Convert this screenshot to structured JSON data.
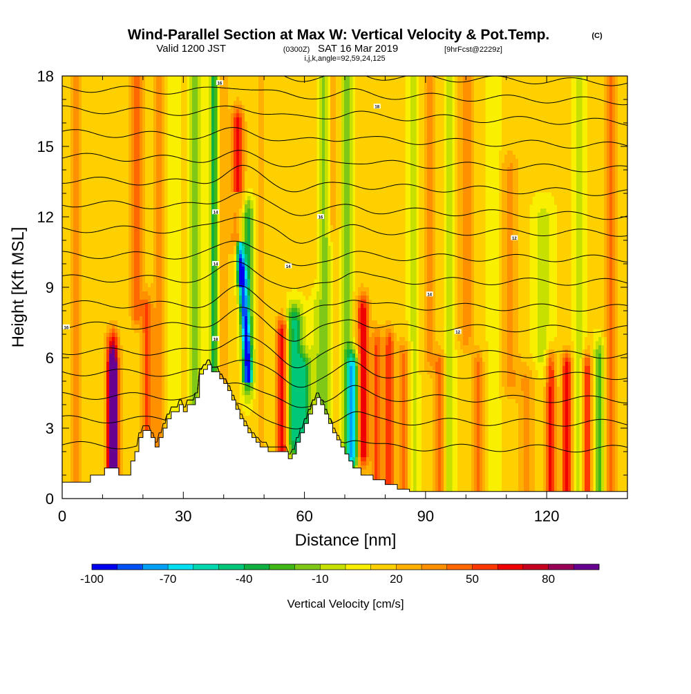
{
  "header": {
    "title_main": "Wind-Parallel Section at Max W: Vertical Velocity & Pot.Temp.",
    "title_mark": "(C)",
    "valid_prefix": "Valid 1200 JST",
    "valid_utc": "(0300Z)",
    "valid_date": "SAT 16 Mar 2019",
    "forecast": "[9hrFcst@2229z]",
    "indices": "i,j,k,angle=92,59,24,125"
  },
  "chart_data": {
    "type": "heatmap",
    "xlabel": "Distance [nm]",
    "ylabel": "Height [Kft MSL]",
    "xlim": [
      0,
      140
    ],
    "ylim": [
      0,
      18
    ],
    "x_ticks": [
      0,
      30,
      60,
      90,
      120
    ],
    "y_ticks": [
      0,
      3,
      6,
      9,
      12,
      15,
      18
    ],
    "x_tick_labels": [
      "0",
      "30",
      "60",
      "90",
      "120"
    ],
    "y_tick_labels": [
      "0",
      "3",
      "6",
      "9",
      "12",
      "15",
      "18"
    ],
    "colorbar": {
      "label": "Vertical Velocity [cm/s]",
      "tick_labels": [
        "-100",
        "-70",
        "-40",
        "-10",
        "20",
        "50",
        "80"
      ],
      "tick_values": [
        -100,
        -70,
        -40,
        -10,
        20,
        50,
        80
      ],
      "min": -100,
      "max": 100,
      "colors": [
        "#0000f0",
        "#0050f5",
        "#00a0f5",
        "#00e0f0",
        "#00d8b0",
        "#00c878",
        "#10b040",
        "#40b818",
        "#80c818",
        "#c8e000",
        "#f8f000",
        "#ffd000",
        "#ffb000",
        "#ff9000",
        "#ff6800",
        "#ff3800",
        "#f00000",
        "#c80020",
        "#980058",
        "#680090"
      ]
    },
    "terrain_profile": {
      "x": [
        0,
        7,
        7,
        10.5,
        10.5,
        14,
        14,
        17,
        17,
        18,
        18,
        19,
        19,
        20,
        20,
        22,
        22,
        23,
        23,
        24,
        24,
        25,
        25,
        26,
        26,
        27,
        27,
        29,
        29,
        30,
        30,
        31,
        31,
        33,
        33,
        34,
        34,
        35,
        35,
        36,
        36,
        37,
        37,
        39,
        39,
        40,
        40,
        41,
        41,
        42,
        42,
        43,
        43,
        44,
        44,
        45,
        45,
        46,
        46,
        47,
        47,
        48,
        48,
        49,
        49,
        51,
        51,
        56,
        56,
        57,
        57,
        58,
        58,
        59,
        59,
        60,
        60,
        61,
        61,
        62,
        62,
        63,
        63,
        64,
        64,
        65,
        65,
        66,
        66,
        67,
        67,
        68,
        68,
        69,
        69,
        70,
        70,
        71,
        71,
        72,
        72,
        74,
        74,
        77,
        77,
        80,
        80,
        83,
        83,
        86,
        86,
        140
      ],
      "y": [
        0.7,
        0.7,
        1.0,
        1.0,
        1.3,
        1.3,
        1.0,
        1.0,
        1.6,
        1.6,
        2.0,
        2.0,
        2.6,
        2.6,
        2.9,
        2.9,
        2.6,
        2.6,
        2.2,
        2.2,
        2.6,
        2.6,
        3.0,
        3.0,
        3.4,
        3.4,
        3.7,
        3.7,
        4.0,
        4.0,
        3.7,
        3.7,
        4.0,
        4.0,
        4.3,
        4.3,
        5.3,
        5.3,
        5.5,
        5.5,
        5.7,
        5.7,
        5.4,
        5.4,
        5.1,
        5.1,
        4.9,
        4.9,
        4.6,
        4.6,
        4.2,
        4.2,
        3.8,
        3.8,
        3.4,
        3.4,
        3.1,
        3.1,
        2.8,
        2.8,
        2.6,
        2.6,
        2.4,
        2.4,
        2.2,
        2.2,
        2.0,
        2.0,
        1.7,
        1.7,
        1.9,
        1.9,
        2.4,
        2.4,
        2.8,
        2.8,
        3.2,
        3.2,
        3.6,
        3.6,
        4.0,
        4.0,
        4.3,
        4.3,
        4.0,
        4.0,
        3.6,
        3.6,
        3.2,
        3.2,
        2.8,
        2.8,
        2.5,
        2.5,
        2.2,
        2.2,
        1.9,
        1.9,
        1.6,
        1.6,
        1.3,
        1.3,
        1.0,
        1.0,
        0.8,
        0.8,
        0.6,
        0.6,
        0.4,
        0.4,
        0.3,
        0.3
      ]
    },
    "isentrope_labels": [
      "16",
      "18",
      "14",
      "14",
      "16",
      "14",
      "16",
      "18",
      "14",
      "12",
      "12"
    ]
  }
}
